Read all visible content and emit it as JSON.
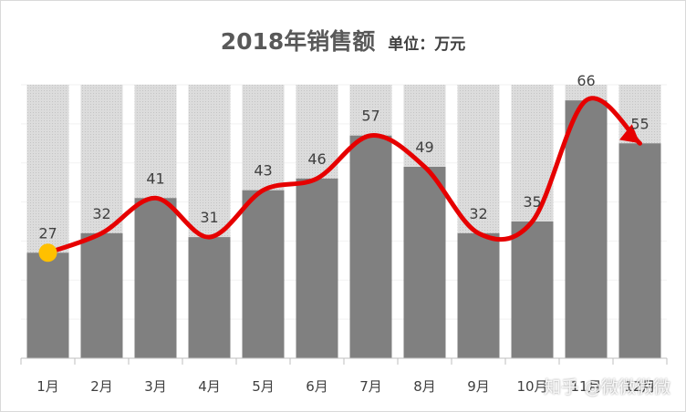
{
  "chart_data": {
    "type": "bar",
    "title": "2018年销售额",
    "unit_label": "单位：万元",
    "categories": [
      "1月",
      "2月",
      "3月",
      "4月",
      "5月",
      "6月",
      "7月",
      "8月",
      "9月",
      "10月",
      "11月",
      "12月"
    ],
    "values": [
      27,
      32,
      41,
      31,
      43,
      46,
      57,
      49,
      32,
      35,
      66,
      55
    ],
    "background_max": 70,
    "ylim": [
      0,
      70
    ],
    "xlabel": "",
    "ylabel": "",
    "legend": "none",
    "colors": {
      "bar": "#808080",
      "background_bar": "#d9d9d9",
      "trend_line": "#e60000",
      "start_marker": "#ffc000",
      "grid": "#f2f2f2"
    }
  },
  "watermark": "知乎 @微微微微"
}
